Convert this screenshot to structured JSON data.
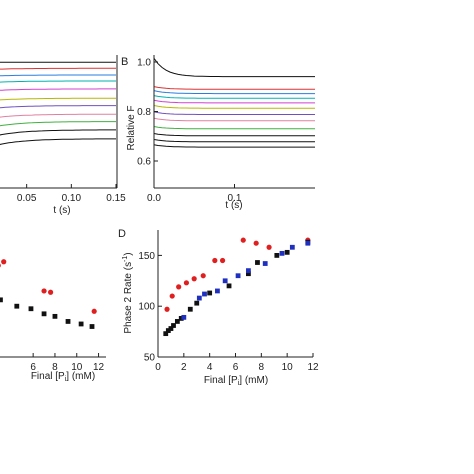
{
  "chart_data": [
    {
      "panel": "A",
      "type": "line",
      "xlabel": "t (s)",
      "x_ticks": [
        "0.05",
        "0.10",
        "0.15"
      ],
      "xlim": [
        0.0,
        0.15
      ],
      "ylim": [
        0.6,
        1.0
      ],
      "y_ticks": [],
      "series": [
        {
          "color": "#111111",
          "start": 0.978,
          "end": 0.978
        },
        {
          "color": "#e03030",
          "start": 0.955,
          "end": 0.96
        },
        {
          "color": "#2a7de0",
          "start": 0.935,
          "end": 0.94
        },
        {
          "color": "#00b3b3",
          "start": 0.915,
          "end": 0.922
        },
        {
          "color": "#d040d0",
          "start": 0.89,
          "end": 0.898
        },
        {
          "color": "#b8b800",
          "start": 0.86,
          "end": 0.87
        },
        {
          "color": "#7050c0",
          "start": 0.835,
          "end": 0.848
        },
        {
          "color": "#e080a0",
          "start": 0.805,
          "end": 0.822
        },
        {
          "color": "#40b040",
          "start": 0.775,
          "end": 0.8
        },
        {
          "color": "#111111",
          "start": 0.745,
          "end": 0.775
        },
        {
          "color": "#111111",
          "start": 0.715,
          "end": 0.748
        }
      ]
    },
    {
      "panel": "B",
      "type": "line",
      "xlabel": "t (s)",
      "ylabel": "Relative F",
      "x_ticks": [
        "0.0",
        "0.1"
      ],
      "y_ticks": [
        "0.6",
        "0.8",
        "1.0"
      ],
      "xlim": [
        0.0,
        0.2
      ],
      "ylim": [
        0.6,
        1.0
      ],
      "series": [
        {
          "color": "#111111",
          "start": 0.99,
          "end": 0.935
        },
        {
          "color": "#e03030",
          "start": 0.905,
          "end": 0.897
        },
        {
          "color": "#2a7de0",
          "start": 0.893,
          "end": 0.884
        },
        {
          "color": "#00b3b3",
          "start": 0.878,
          "end": 0.87
        },
        {
          "color": "#d040d0",
          "start": 0.864,
          "end": 0.856
        },
        {
          "color": "#b8b800",
          "start": 0.848,
          "end": 0.84
        },
        {
          "color": "#7050c0",
          "start": 0.829,
          "end": 0.821
        },
        {
          "color": "#e080a0",
          "start": 0.81,
          "end": 0.802
        },
        {
          "color": "#40b040",
          "start": 0.785,
          "end": 0.778
        },
        {
          "color": "#111111",
          "start": 0.764,
          "end": 0.757
        },
        {
          "color": "#111111",
          "start": 0.746,
          "end": 0.739
        },
        {
          "color": "#111111",
          "start": 0.73,
          "end": 0.723
        }
      ]
    },
    {
      "panel": "C",
      "type": "scatter",
      "xlabel": "Final [Pi] (mM)",
      "x_ticks": [
        "6",
        "8",
        "10",
        "12"
      ],
      "xlim": [
        2.5,
        12.5
      ],
      "ylim": [
        0,
        100
      ],
      "series": [
        {
          "color": "#e02020",
          "marker": "circle",
          "x": [
            2.8,
            3.3,
            7.0,
            7.6,
            11.6
          ],
          "y": [
            72,
            75,
            52,
            51,
            36
          ]
        },
        {
          "color": "#111111",
          "marker": "square",
          "x": [
            3.0,
            4.5,
            5.8,
            7.0,
            8.0,
            9.2,
            10.4,
            11.4
          ],
          "y": [
            45,
            40,
            38,
            34,
            32,
            28,
            26,
            24
          ]
        }
      ]
    },
    {
      "panel": "D",
      "type": "scatter",
      "xlabel": "Final [Pi] (mM)",
      "ylabel": "Phase 2 Rate (s⁻¹)",
      "x_ticks": [
        "0",
        "2",
        "4",
        "6",
        "8",
        "10",
        "12"
      ],
      "y_ticks": [
        "50",
        "100",
        "150"
      ],
      "xlim": [
        0,
        12
      ],
      "ylim": [
        50,
        175
      ],
      "series": [
        {
          "color": "#e02020",
          "marker": "circle",
          "x": [
            0.7,
            1.1,
            1.6,
            2.2,
            2.8,
            3.5,
            4.4,
            5.0,
            6.6,
            7.6,
            8.6,
            11.6
          ],
          "y": [
            97,
            110,
            119,
            123,
            127,
            130,
            145,
            145,
            165,
            162,
            158,
            165
          ]
        },
        {
          "color": "#111111",
          "marker": "square",
          "x": [
            0.6,
            0.8,
            1.0,
            1.2,
            1.5,
            1.8,
            2.5,
            3.0,
            4.0,
            5.5,
            7.0,
            7.7,
            9.2,
            10.0,
            11.6
          ],
          "y": [
            73,
            76,
            78,
            81,
            85,
            88,
            97,
            103,
            113,
            120,
            132,
            143,
            150,
            153,
            163
          ]
        },
        {
          "color": "#1f2fc0",
          "marker": "square",
          "x": [
            2.0,
            3.2,
            3.6,
            4.6,
            5.2,
            6.2,
            7.0,
            8.3,
            9.6,
            10.4,
            11.6
          ],
          "y": [
            89,
            108,
            112,
            115,
            125,
            130,
            135,
            142,
            152,
            158,
            162
          ]
        }
      ]
    }
  ],
  "labels": {
    "panel_b": "B",
    "panel_d": "D",
    "c_sub": "i",
    "c_xlabel_pre": "Final [P",
    "c_xlabel_post": "] (mM)",
    "d_sub": "i",
    "d_xlabel_pre": "Final [P",
    "d_xlabel_post": "] (mM)",
    "d_ylabel_pre": "Phase 2 Rate (s",
    "d_ylabel_sup": "-1",
    "d_ylabel_post": ")"
  }
}
